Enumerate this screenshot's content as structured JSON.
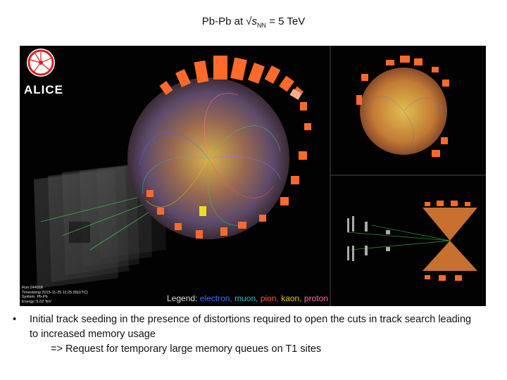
{
  "slide": {
    "title_prefix": "Pb-Pb at √",
    "title_var": "s",
    "title_sub": "NN",
    "title_suffix": " = 5 TeV"
  },
  "figure": {
    "logo_text": "ALICE",
    "event_info": {
      "run": "Run:244918",
      "timestamp": "Timestamp:2015-11-25 11:25:36(UTC)",
      "system": "System: Pb-Pb",
      "energy": "Energy: 5.02 TeV"
    },
    "legend": {
      "label": "Legend:",
      "electron": "electron,",
      "muon": "muon,",
      "pion": "pion,",
      "kaon": "kaon,",
      "proton": "proton"
    },
    "colors": {
      "background": "#020202",
      "calorimeter": "#ff6a2a",
      "electron": "#3f6cff",
      "muon": "#22c2c2",
      "pion": "#ff5a2a",
      "kaon": "#e6c800",
      "proton": "#ff6f9f",
      "logo_red": "#d92020"
    }
  },
  "bullets": [
    {
      "marker": "•",
      "text": "Initial track seeding in the presence of distortions required to open the cuts in track search leading to increased memory usage",
      "subline": "=> Request for temporary large memory queues on T1 sites"
    }
  ]
}
